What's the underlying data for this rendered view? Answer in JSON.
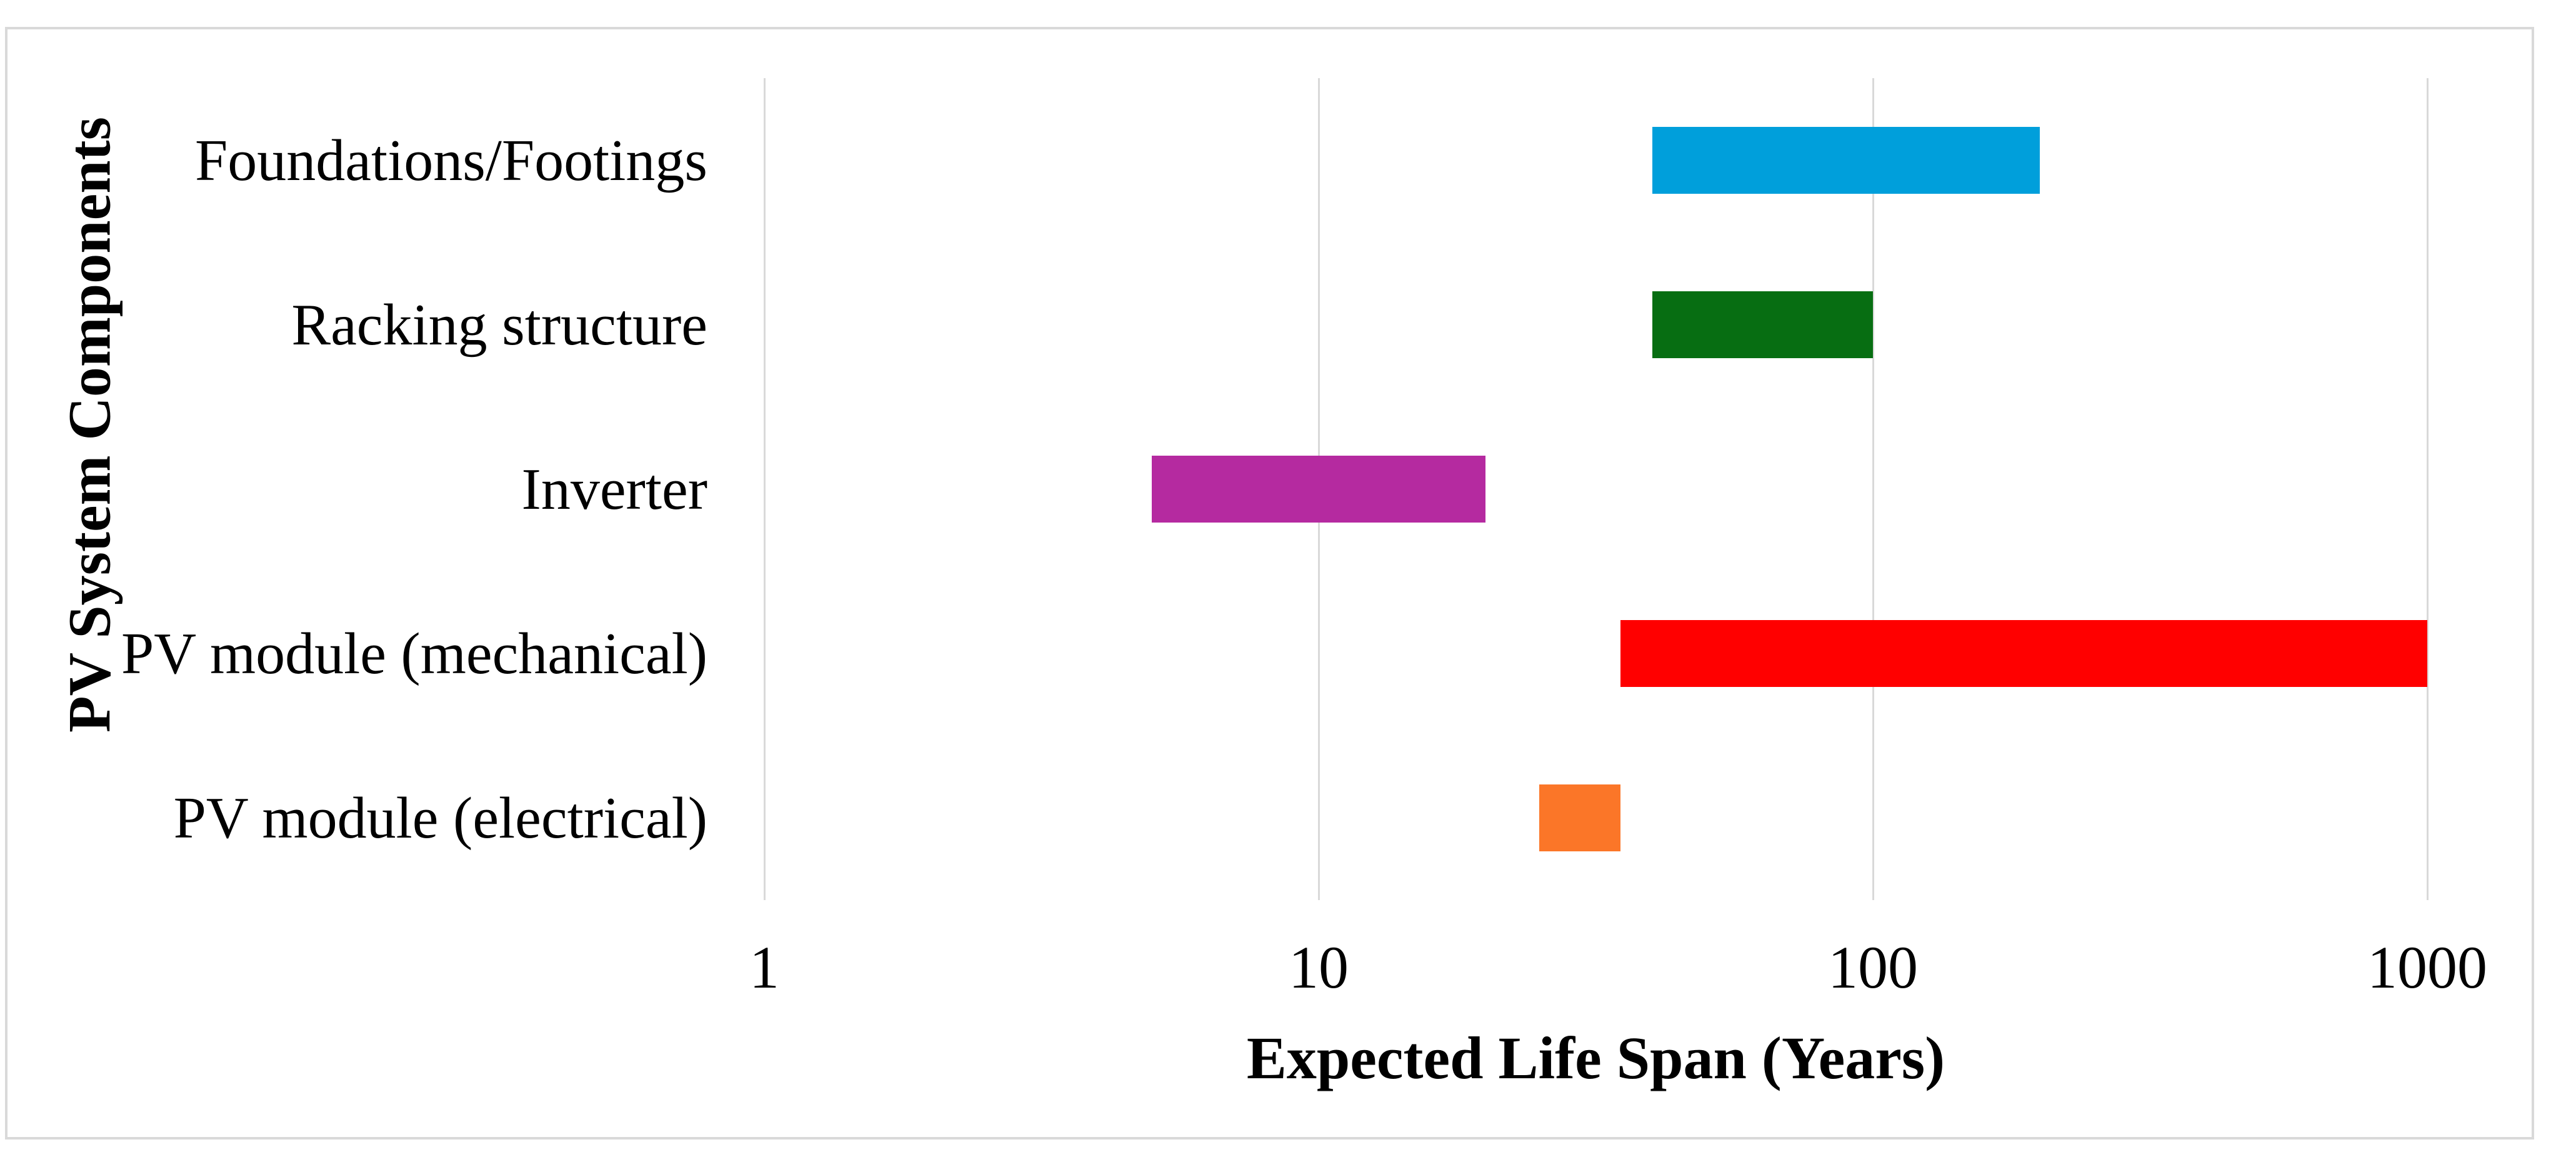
{
  "figure": {
    "x_axis_title": "Expected Life Span (Years)",
    "y_axis_title": "PV System Components"
  },
  "chart_data": {
    "type": "bar",
    "subtype": "horizontal-range-bar",
    "title": "",
    "xlabel": "Expected Life Span (Years)",
    "ylabel": "PV System Components",
    "x_scale": "log10",
    "xlim": [
      1,
      1000
    ],
    "x_ticks": [
      "1",
      "10",
      "100",
      "1000"
    ],
    "grid": "vertical",
    "legend": "none",
    "categories": [
      "Foundations/Footings",
      "Racking structure",
      "Inverter",
      "PV module (mechanical)",
      "PV module (electrical)"
    ],
    "bars": [
      {
        "category": "Foundations/Footings",
        "start": 40,
        "end": 200,
        "color": "#009FDB"
      },
      {
        "category": "Racking structure",
        "start": 40,
        "end": 100,
        "color": "#076E12"
      },
      {
        "category": "Inverter",
        "start": 5,
        "end": 20,
        "color": "#B52AA0"
      },
      {
        "category": "PV module (mechanical)",
        "start": 35,
        "end": 1000,
        "color": "#FF0000"
      },
      {
        "category": "PV module (electrical)",
        "start": 25,
        "end": 35,
        "color": "#FB7628"
      }
    ],
    "colors": {
      "gridline": "#D9D9D9",
      "frame_border": "#D9D9D9",
      "text": "#000000",
      "background": "#FFFFFF"
    }
  }
}
